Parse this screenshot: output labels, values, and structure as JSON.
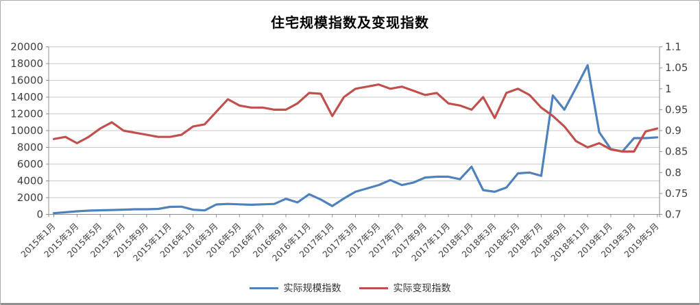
{
  "window": {
    "title": "住宅规模指数及变现指数"
  },
  "chart_data": {
    "type": "line",
    "title": "住宅规模指数及变现指数",
    "grid": true,
    "legend_position": "bottom",
    "categories": [
      "2015年1月",
      "2015年2月",
      "2015年3月",
      "2015年4月",
      "2015年5月",
      "2015年6月",
      "2015年7月",
      "2015年8月",
      "2015年9月",
      "2015年10月",
      "2015年11月",
      "2015年12月",
      "2016年1月",
      "2016年2月",
      "2016年3月",
      "2016年4月",
      "2016年5月",
      "2016年6月",
      "2016年7月",
      "2016年8月",
      "2016年9月",
      "2016年10月",
      "2016年11月",
      "2016年12月",
      "2017年1月",
      "2017年2月",
      "2017年3月",
      "2017年4月",
      "2017年5月",
      "2017年6月",
      "2017年7月",
      "2017年8月",
      "2017年9月",
      "2017年10月",
      "2017年11月",
      "2017年12月",
      "2018年1月",
      "2018年2月",
      "2018年3月",
      "2018年4月",
      "2018年5月",
      "2018年6月",
      "2018年7月",
      "2018年8月",
      "2018年9月",
      "2018年10月",
      "2018年11月",
      "2018年12月",
      "2019年1月",
      "2019年2月",
      "2019年3月",
      "2019年4月",
      "2019年5月"
    ],
    "x_tick_every": 2,
    "series": [
      {
        "name": "实际规模指数",
        "axis": "left",
        "color": "#4f81bd",
        "values": [
          150,
          250,
          370,
          450,
          490,
          520,
          560,
          610,
          610,
          650,
          900,
          920,
          560,
          470,
          1180,
          1250,
          1200,
          1150,
          1200,
          1250,
          1860,
          1430,
          2400,
          1780,
          1000,
          1900,
          2700,
          3100,
          3500,
          4100,
          3500,
          3800,
          4400,
          4500,
          4500,
          4200,
          5700,
          2900,
          2700,
          3200,
          4900,
          5000,
          4600,
          14200,
          12500,
          15100,
          17800,
          9800,
          7800,
          7500,
          9100,
          9100,
          9200
        ]
      },
      {
        "name": "实际变现指数",
        "axis": "right",
        "color": "#c0504d",
        "values": [
          0.88,
          0.885,
          0.87,
          0.885,
          0.905,
          0.92,
          0.9,
          0.895,
          0.89,
          0.885,
          0.885,
          0.89,
          0.91,
          0.915,
          0.945,
          0.975,
          0.96,
          0.955,
          0.955,
          0.95,
          0.95,
          0.965,
          0.99,
          0.988,
          0.935,
          0.98,
          1.0,
          1.005,
          1.01,
          1.0,
          1.005,
          0.995,
          0.985,
          0.99,
          0.965,
          0.96,
          0.95,
          0.98,
          0.93,
          0.99,
          1.0,
          0.985,
          0.955,
          0.935,
          0.91,
          0.875,
          0.86,
          0.87,
          0.855,
          0.85,
          0.85,
          0.898,
          0.905
        ]
      }
    ],
    "left_axis": {
      "min": 0,
      "max": 20000,
      "step": 2000,
      "labels": [
        "20000",
        "18000",
        "16000",
        "14000",
        "12000",
        "10000",
        "8000",
        "6000",
        "4000",
        "2000",
        "0"
      ]
    },
    "right_axis": {
      "min": 0.7,
      "max": 1.1,
      "step": 0.05,
      "labels": [
        "1.1",
        "1.05",
        "1",
        "0.95",
        "0.9",
        "0.85",
        "0.8",
        "0.75",
        "0.7"
      ]
    }
  },
  "legend": {
    "items": [
      {
        "label": "实际规模指数",
        "color": "#4f81bd"
      },
      {
        "label": "实际变现指数",
        "color": "#c0504d"
      }
    ]
  },
  "style_colors": {
    "gridline": "#c9c9c9",
    "axis": "#8c8c8c",
    "tick_text": "#3f3f3f"
  }
}
